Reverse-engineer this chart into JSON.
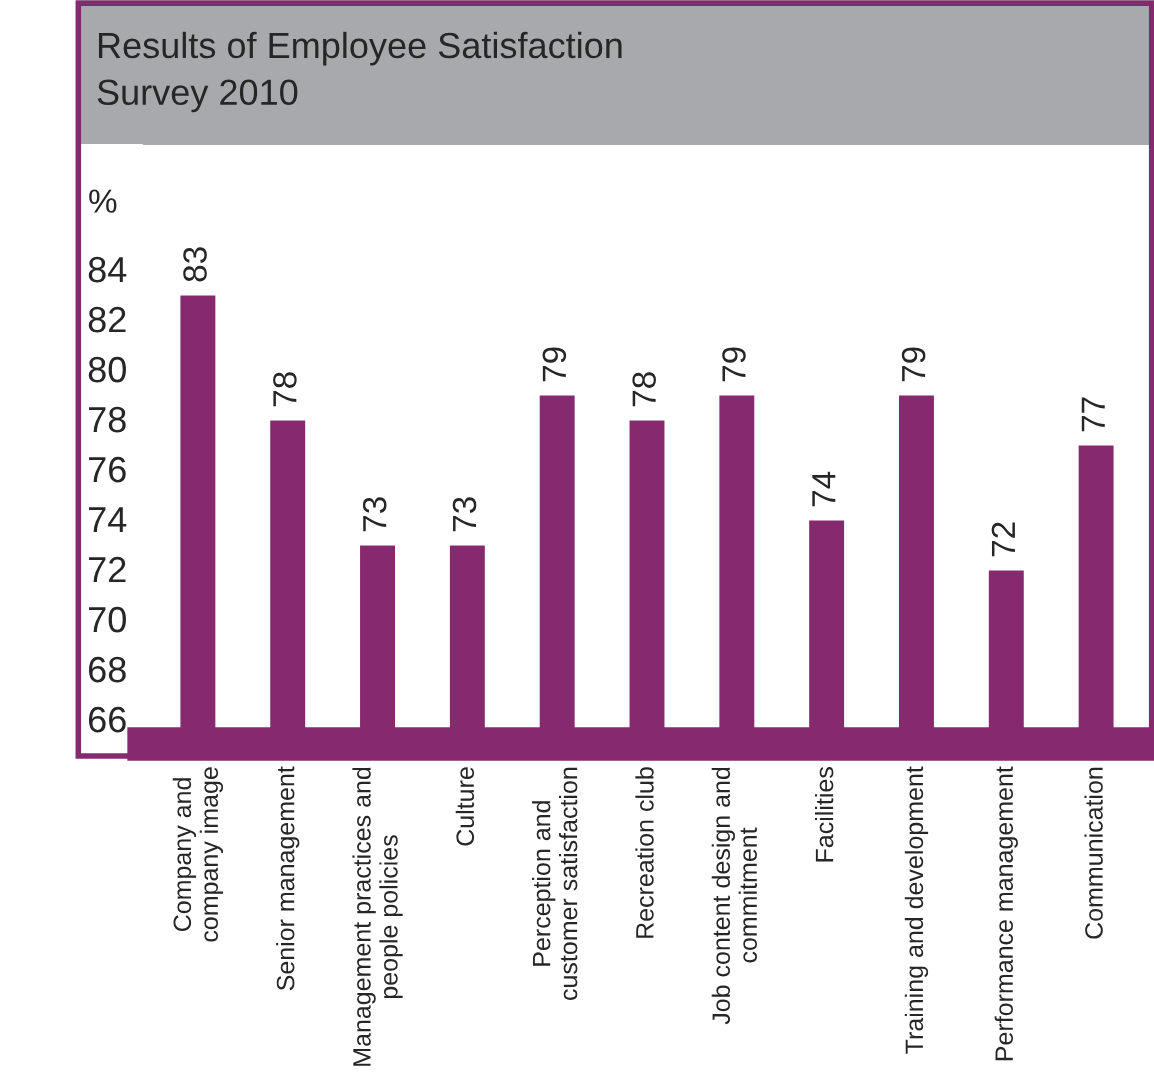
{
  "chart_data": {
    "type": "bar",
    "title": "Results of Employee Satisfaction\nSurvey 2010",
    "ylabel": "%",
    "categories": [
      "Company and\ncompany image",
      "Senior management",
      "Management practices and\npeople policies",
      "Culture",
      "Perception and\ncustomer satisfaction",
      "Recreation club",
      "Job content design and\ncommitment",
      "Facilities",
      "Training and development",
      "Performance management",
      "Communication"
    ],
    "values": [
      83,
      78,
      73,
      73,
      79,
      78,
      79,
      74,
      79,
      72,
      77
    ],
    "color": "#862a6f",
    "data_labels": true,
    "grid": false,
    "legend": false,
    "ylim": [
      65,
      89
    ],
    "yticks": [
      66,
      68,
      70,
      72,
      74,
      76,
      78,
      80,
      82,
      84
    ]
  }
}
